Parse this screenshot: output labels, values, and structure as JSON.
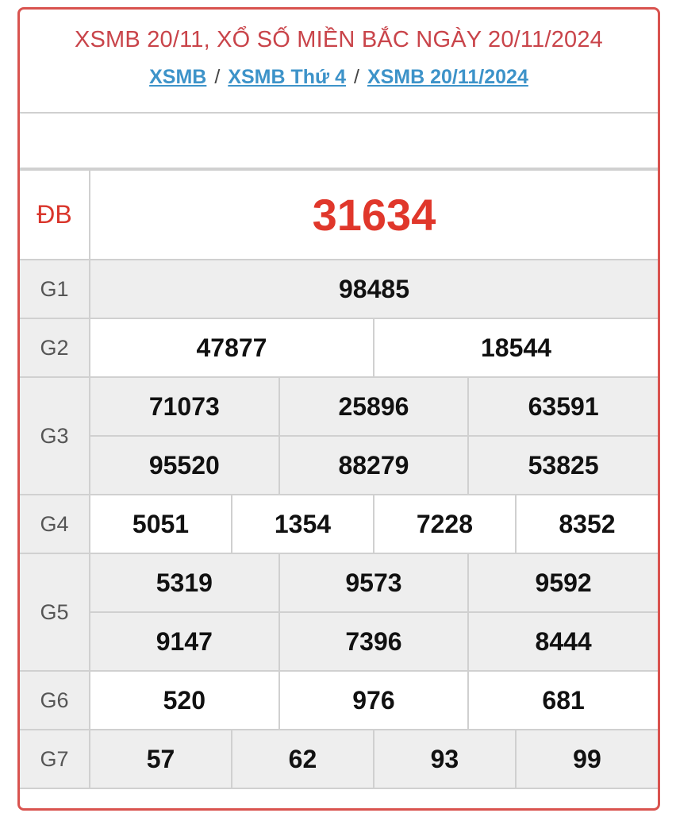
{
  "header": {
    "title": "XSMB 20/11, XỔ SỐ MIỀN BẮC NGÀY 20/11/2024",
    "breadcrumbs": [
      "XSMB",
      "XSMB Thứ 4",
      "XSMB 20/11/2024"
    ],
    "separator": "/"
  },
  "colors": {
    "border": "#d9534f",
    "title": "#c9444a",
    "link": "#3d93c9",
    "special": "#e0372b"
  },
  "prizes": {
    "db": {
      "label": "ĐB",
      "numbers": [
        "31634"
      ]
    },
    "g1": {
      "label": "G1",
      "numbers": [
        "98485"
      ]
    },
    "g2": {
      "label": "G2",
      "numbers": [
        "47877",
        "18544"
      ]
    },
    "g3": {
      "label": "G3",
      "numbers": [
        "71073",
        "25896",
        "63591",
        "95520",
        "88279",
        "53825"
      ]
    },
    "g4": {
      "label": "G4",
      "numbers": [
        "5051",
        "1354",
        "7228",
        "8352"
      ]
    },
    "g5": {
      "label": "G5",
      "numbers": [
        "5319",
        "9573",
        "9592",
        "9147",
        "7396",
        "8444"
      ]
    },
    "g6": {
      "label": "G6",
      "numbers": [
        "520",
        "976",
        "681"
      ]
    },
    "g7": {
      "label": "G7",
      "numbers": [
        "57",
        "62",
        "93",
        "99"
      ]
    }
  }
}
